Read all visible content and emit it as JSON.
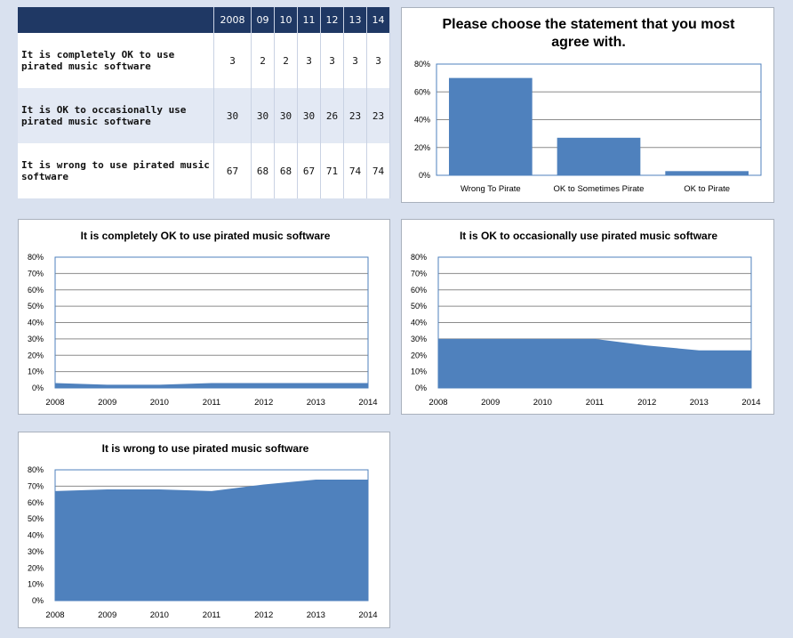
{
  "table": {
    "headers": [
      "",
      "2008",
      "09",
      "10",
      "11",
      "12",
      "13",
      "14"
    ],
    "rows": [
      {
        "label": "It is completely OK to use pirated music software",
        "values": [
          "3",
          "2",
          "2",
          "3",
          "3",
          "3",
          "3"
        ]
      },
      {
        "label": "It is OK to occasionally use pirated music software",
        "values": [
          "30",
          "30",
          "30",
          "30",
          "26",
          "23",
          "23"
        ]
      },
      {
        "label": "It is wrong to use pirated music software",
        "values": [
          "67",
          "68",
          "68",
          "67",
          "71",
          "74",
          "74"
        ]
      }
    ]
  },
  "colors": {
    "bar": "#4f81bd",
    "area": "#4f81bd",
    "header": "#1f3864",
    "background": "#d9e1ef"
  },
  "chart_data": [
    {
      "type": "bar",
      "title": "Please choose the statement that you most agree with.",
      "categories": [
        "Wrong To Pirate",
        "OK to Sometimes Pirate",
        "OK to Pirate"
      ],
      "values": [
        70,
        27,
        3
      ],
      "yticks": [
        "0%",
        "20%",
        "40%",
        "60%",
        "80%"
      ],
      "ylim": [
        0,
        80
      ],
      "grid": true
    },
    {
      "type": "area",
      "title": "It is completely OK to use pirated music software",
      "x": [
        "2008",
        "2009",
        "2010",
        "2011",
        "2012",
        "2013",
        "2014"
      ],
      "values": [
        3,
        2,
        2,
        3,
        3,
        3,
        3
      ],
      "yticks": [
        "0%",
        "10%",
        "20%",
        "30%",
        "40%",
        "50%",
        "60%",
        "70%",
        "80%"
      ],
      "ylim": [
        0,
        80
      ],
      "grid": true
    },
    {
      "type": "area",
      "title": "It is OK to occasionally use pirated music software",
      "x": [
        "2008",
        "2009",
        "2010",
        "2011",
        "2012",
        "2013",
        "2014"
      ],
      "values": [
        30,
        30,
        30,
        30,
        26,
        23,
        23
      ],
      "yticks": [
        "0%",
        "10%",
        "20%",
        "30%",
        "40%",
        "50%",
        "60%",
        "70%",
        "80%"
      ],
      "ylim": [
        0,
        80
      ],
      "grid": true
    },
    {
      "type": "area",
      "title": "It is wrong to use pirated music software",
      "x": [
        "2008",
        "2009",
        "2010",
        "2011",
        "2012",
        "2013",
        "2014"
      ],
      "values": [
        67,
        68,
        68,
        67,
        71,
        74,
        74
      ],
      "yticks": [
        "0%",
        "10%",
        "20%",
        "30%",
        "40%",
        "50%",
        "60%",
        "70%",
        "80%"
      ],
      "ylim": [
        0,
        80
      ],
      "grid": true
    }
  ]
}
